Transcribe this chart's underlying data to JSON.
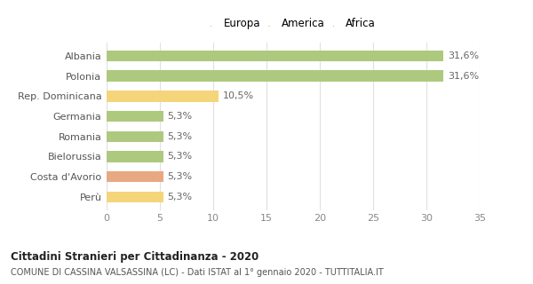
{
  "categories": [
    "Albania",
    "Polonia",
    "Rep. Dominicana",
    "Germania",
    "Romania",
    "Bielorussia",
    "Costa d'Avorio",
    "Perù"
  ],
  "values": [
    31.6,
    31.6,
    10.5,
    5.3,
    5.3,
    5.3,
    5.3,
    5.3
  ],
  "labels": [
    "31,6%",
    "31,6%",
    "10,5%",
    "5,3%",
    "5,3%",
    "5,3%",
    "5,3%",
    "5,3%"
  ],
  "bar_colors": [
    "#adc97e",
    "#adc97e",
    "#f5d57a",
    "#adc97e",
    "#adc97e",
    "#adc97e",
    "#e8a882",
    "#f5d57a"
  ],
  "legend_labels": [
    "Europa",
    "America",
    "Africa"
  ],
  "legend_colors": [
    "#adc97e",
    "#f5d57a",
    "#e8a882"
  ],
  "title_bold": "Cittadini Stranieri per Cittadinanza - 2020",
  "subtitle": "COMUNE DI CASSINA VALSASSINA (LC) - Dati ISTAT al 1° gennaio 2020 - TUTTITALIA.IT",
  "xlim": [
    0,
    35
  ],
  "xticks": [
    0,
    5,
    10,
    15,
    20,
    25,
    30,
    35
  ],
  "background_color": "#ffffff",
  "grid_color": "#e0e0e0"
}
